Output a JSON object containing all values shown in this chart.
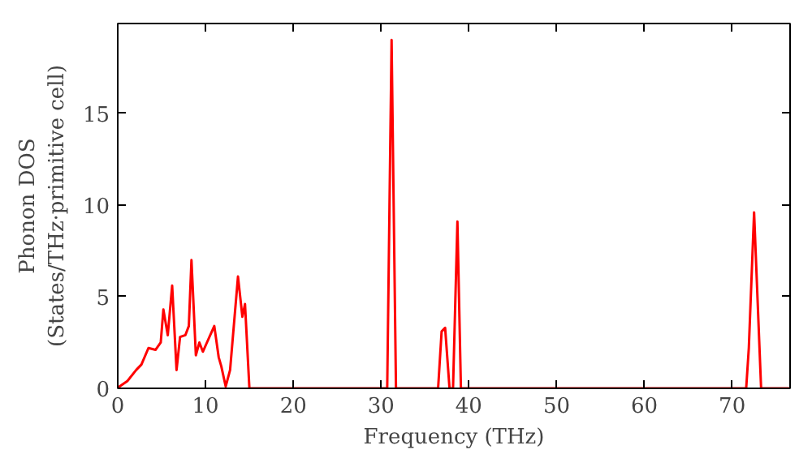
{
  "chart_data": {
    "type": "line",
    "xlabel": "Frequency (THz)",
    "ylabel": "Phonon DOS\n(States/THz·primitive cell)",
    "x": [
      0,
      0.2,
      1.1,
      2.1,
      2.7,
      3.5,
      4.3,
      4.9,
      5.2,
      5.7,
      6.2,
      6.7,
      7.1,
      7.7,
      8.1,
      8.4,
      8.9,
      9.3,
      9.7,
      11.0,
      11.5,
      11.8,
      12.3,
      12.8,
      13.7,
      14.2,
      14.5,
      15.0,
      30.7,
      31.2,
      31.7,
      36.5,
      36.9,
      37.3,
      37.8,
      38.2,
      38.7,
      39.1,
      71.6,
      71.9,
      72.5,
      73.3,
      76.6
    ],
    "series": [
      {
        "color": "#ff0000",
        "values": [
          0,
          0.1,
          0.4,
          1.0,
          1.3,
          2.2,
          2.1,
          2.5,
          4.3,
          2.9,
          5.6,
          1.0,
          2.8,
          2.9,
          3.4,
          7.0,
          1.8,
          2.5,
          2.0,
          3.4,
          1.7,
          1.2,
          0.1,
          1.0,
          6.1,
          3.9,
          4.6,
          0,
          0,
          19.0,
          0,
          0,
          3.1,
          3.3,
          0,
          0,
          9.1,
          0,
          0,
          2.2,
          9.6,
          0,
          0
        ]
      }
    ],
    "xlim": [
      0,
      76.6
    ],
    "ylim": [
      0,
      19.9
    ],
    "xticks": [
      0,
      10,
      20,
      30,
      40,
      50,
      60,
      70
    ],
    "yticks": [
      0,
      5,
      10,
      15
    ],
    "grid": false
  }
}
